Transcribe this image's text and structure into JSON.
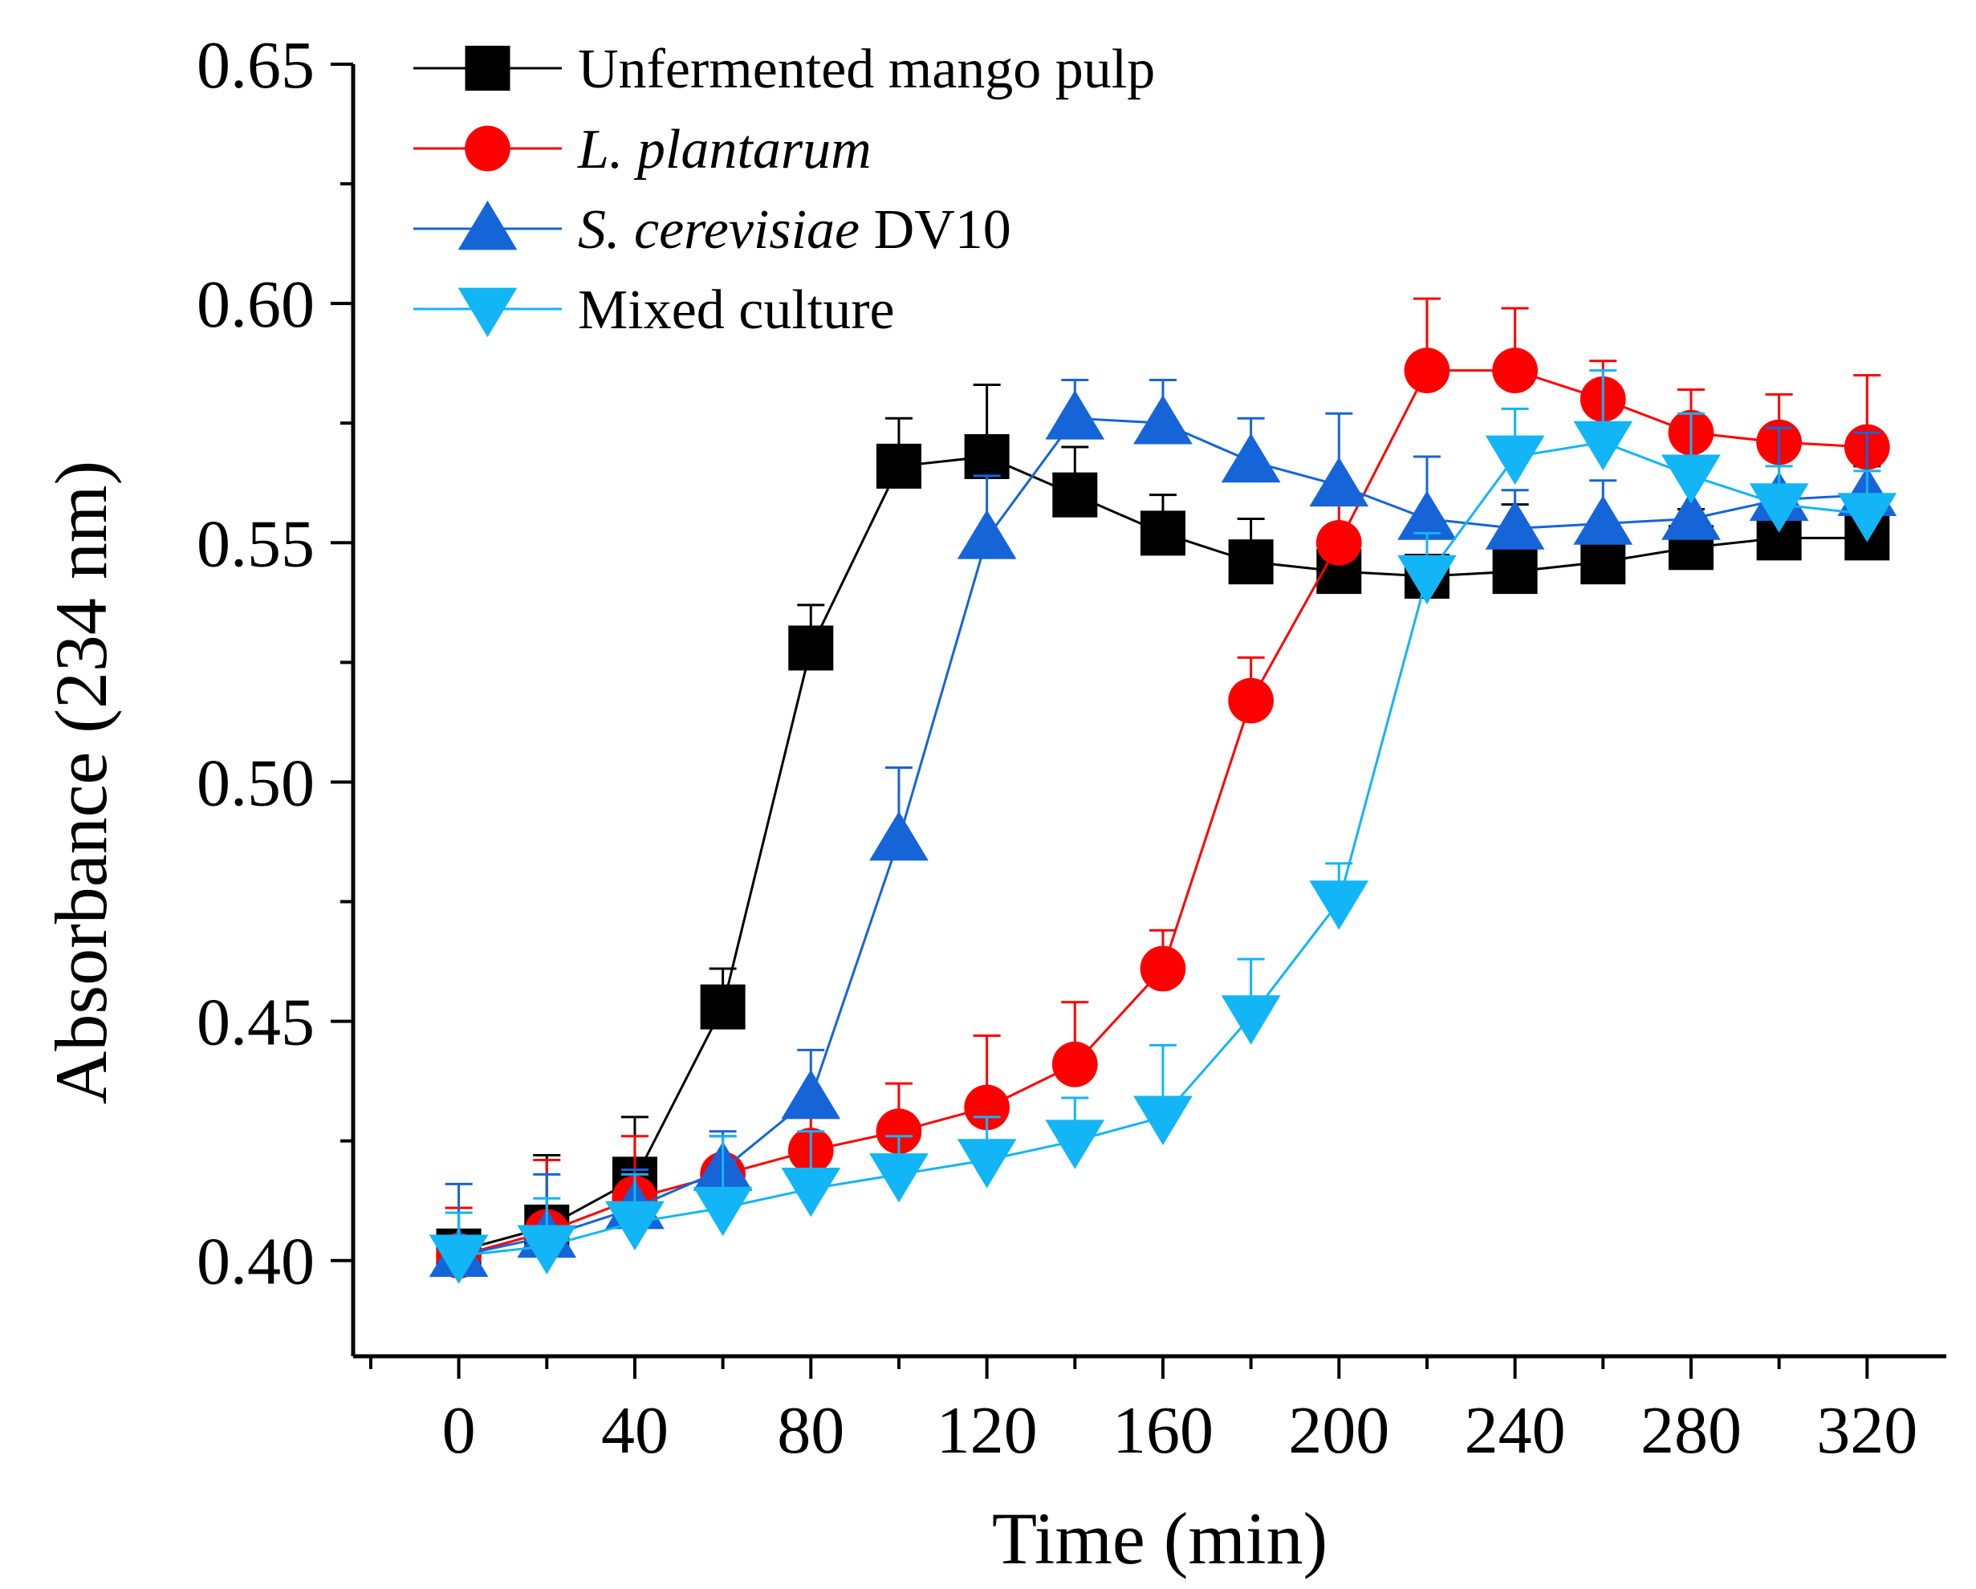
{
  "chart_data": {
    "type": "line",
    "title": "",
    "xlabel": "Time (min)",
    "ylabel": "Absorbance (234 nm)",
    "xlim": [
      -24,
      338
    ],
    "ylim": [
      0.38,
      0.65
    ],
    "xticks": [
      0,
      40,
      80,
      120,
      160,
      200,
      240,
      280,
      320
    ],
    "xtick_labels": [
      "0",
      "40",
      "80",
      "120",
      "160",
      "200",
      "240",
      "280",
      "320"
    ],
    "yticks": [
      0.4,
      0.45,
      0.5,
      0.55,
      0.6,
      0.65
    ],
    "ytick_labels": [
      "0.40",
      "0.45",
      "0.50",
      "0.55",
      "0.60",
      "0.65"
    ],
    "x": [
      0,
      20,
      40,
      60,
      80,
      100,
      120,
      140,
      160,
      180,
      200,
      220,
      240,
      260,
      280,
      300,
      320
    ],
    "legend_position": "top-left",
    "series": [
      {
        "name": "Unfermented mango pulp",
        "name_parts": [
          {
            "text": "Unfermented mango pulp",
            "italic": false
          }
        ],
        "color": "#000000",
        "marker": "square",
        "values": [
          0.402,
          0.407,
          0.417,
          0.453,
          0.528,
          0.566,
          0.568,
          0.56,
          0.552,
          0.546,
          0.544,
          0.543,
          0.544,
          0.546,
          0.549,
          0.551,
          0.551
        ],
        "errors": [
          0.003,
          0.015,
          0.013,
          0.008,
          0.009,
          0.01,
          0.015,
          0.01,
          0.008,
          0.009,
          0.009,
          0.003,
          0.014,
          0.007,
          0.008,
          0.01,
          0.015
        ]
      },
      {
        "name": "L. plantarum",
        "name_parts": [
          {
            "text": "L. plantarum",
            "italic": true
          }
        ],
        "color": "#ff0000",
        "marker": "circle",
        "values": [
          0.401,
          0.406,
          0.413,
          0.418,
          0.423,
          0.427,
          0.432,
          0.441,
          0.461,
          0.517,
          0.55,
          0.586,
          0.586,
          0.58,
          0.573,
          0.571,
          0.57
        ],
        "errors": [
          0.01,
          0.015,
          0.013,
          0.008,
          0.009,
          0.01,
          0.015,
          0.013,
          0.008,
          0.009,
          0.01,
          0.015,
          0.013,
          0.008,
          0.009,
          0.01,
          0.015
        ]
      },
      {
        "name": "S. cerevisiae DV10",
        "name_parts": [
          {
            "text": "S. cerevisiae",
            "italic": true
          },
          {
            "text": " DV10",
            "italic": false
          }
        ],
        "color": "#1565d8",
        "marker": "triangle-up",
        "values": [
          0.401,
          0.405,
          0.411,
          0.419,
          0.434,
          0.488,
          0.551,
          0.576,
          0.575,
          0.567,
          0.562,
          0.555,
          0.553,
          0.554,
          0.555,
          0.559,
          0.56
        ],
        "errors": [
          0.015,
          0.013,
          0.008,
          0.008,
          0.01,
          0.015,
          0.013,
          0.008,
          0.009,
          0.009,
          0.015,
          0.013,
          0.008,
          0.009,
          0.009,
          0.015,
          0.013
        ]
      },
      {
        "name": "Mixed culture",
        "name_parts": [
          {
            "text": "Mixed culture",
            "italic": false
          }
        ],
        "color": "#12b5f5",
        "marker": "triangle-down",
        "values": [
          0.401,
          0.403,
          0.408,
          0.411,
          0.415,
          0.418,
          0.421,
          0.425,
          0.43,
          0.451,
          0.475,
          0.543,
          0.568,
          0.571,
          0.564,
          0.558,
          0.556
        ],
        "errors": [
          0.009,
          0.01,
          0.01,
          0.015,
          0.012,
          0.008,
          0.009,
          0.009,
          0.015,
          0.012,
          0.008,
          0.009,
          0.01,
          0.015,
          0.013,
          0.008,
          0.009
        ]
      }
    ]
  }
}
